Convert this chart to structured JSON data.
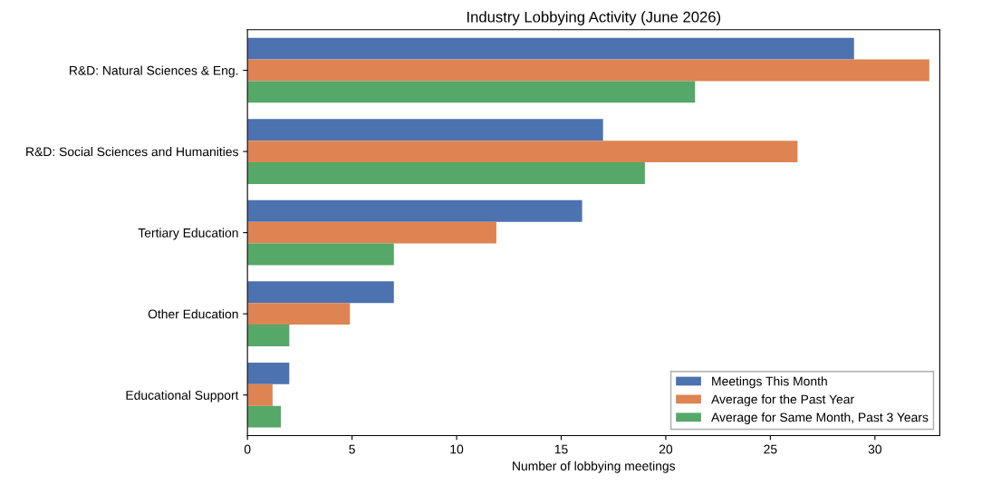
{
  "chart_data": {
    "type": "bar",
    "orientation": "horizontal",
    "title": "Industry Lobbying Activity (June 2026)",
    "xlabel": "Number of lobbying meetings",
    "categories": [
      "R&D: Natural Sciences & Eng.",
      "R&D: Social Sciences and Humanities",
      "Tertiary Education",
      "Other Education",
      "Educational Support"
    ],
    "series": [
      {
        "name": "Meetings This Month",
        "color": "#4c72b0",
        "values": [
          29,
          17,
          16,
          7,
          2
        ]
      },
      {
        "name": "Average for the Past Year",
        "color": "#dd8452",
        "values": [
          32.6,
          26.3,
          11.9,
          4.9,
          1.2
        ]
      },
      {
        "name": "Average for Same Month, Past 3 Years",
        "color": "#55a868",
        "values": [
          21.4,
          19,
          7,
          2,
          1.6
        ]
      }
    ],
    "xlim": [
      0,
      33.1
    ],
    "xticks": [
      0,
      5,
      10,
      15,
      20,
      25,
      30
    ],
    "grid": false,
    "legend": "bottom right"
  }
}
